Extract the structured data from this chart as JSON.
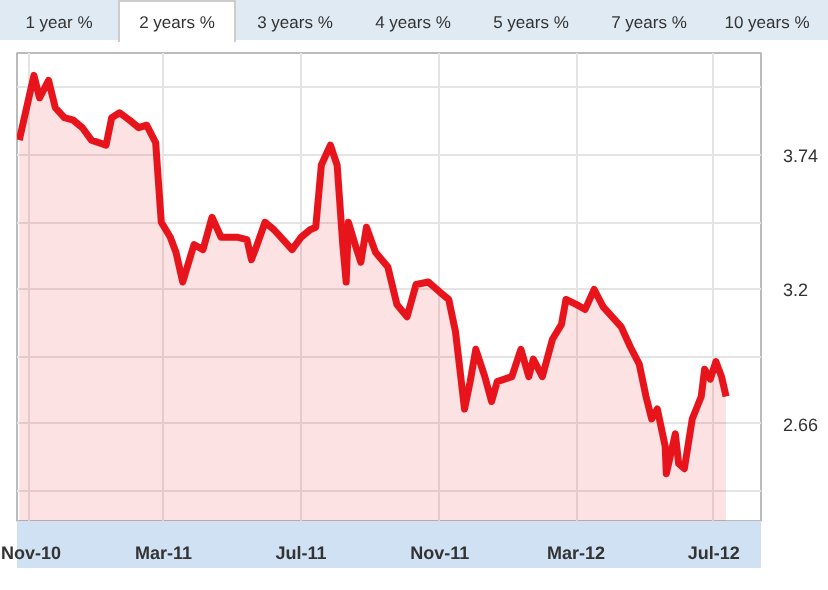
{
  "chart_data": {
    "type": "area",
    "annotations": [
      "1 year %",
      "2 years %",
      "3 years %",
      "4 years %",
      "5 years %",
      "7 years %",
      "10 years %"
    ],
    "x": [
      "2010-10-24",
      "2010-11-06",
      "2010-11-11",
      "2010-11-19",
      "2010-11-25",
      "2010-12-03",
      "2010-12-11",
      "2010-12-19",
      "2010-12-27",
      "2011-01-09",
      "2011-01-14",
      "2011-01-21",
      "2011-01-30",
      "2011-02-07",
      "2011-02-14",
      "2011-02-22",
      "2011-02-27",
      "2011-03-07",
      "2011-03-12",
      "2011-03-18",
      "2011-03-28",
      "2011-04-05",
      "2011-04-13",
      "2011-04-21",
      "2011-05-05",
      "2011-05-14",
      "2011-05-18",
      "2011-05-23",
      "2011-05-30",
      "2011-06-07",
      "2011-06-15",
      "2011-06-23",
      "2011-07-01",
      "2011-07-09",
      "2011-07-14",
      "2011-07-19",
      "2011-07-27",
      "2011-08-02",
      "2011-08-07",
      "2011-08-10",
      "2011-08-12",
      "2011-08-18",
      "2011-08-23",
      "2011-08-28",
      "2011-09-05",
      "2011-09-16",
      "2011-09-24",
      "2011-10-03",
      "2011-10-11",
      "2011-10-22",
      "2011-11-01",
      "2011-11-09",
      "2011-11-15",
      "2011-11-23",
      "2011-11-28",
      "2011-12-03",
      "2011-12-11",
      "2011-12-17",
      "2011-12-22",
      "2012-01-04",
      "2012-01-12",
      "2012-01-19",
      "2012-01-23",
      "2012-01-31",
      "2012-02-09",
      "2012-02-17",
      "2012-02-21",
      "2012-03-01",
      "2012-03-09",
      "2012-03-17",
      "2012-03-25",
      "2012-04-02",
      "2012-04-10",
      "2012-04-18",
      "2012-04-26",
      "2012-05-02",
      "2012-05-07",
      "2012-05-12",
      "2012-05-19",
      "2012-05-20",
      "2012-05-28",
      "2012-05-31",
      "2012-06-05",
      "2012-06-12",
      "2012-06-20",
      "2012-06-23",
      "2012-06-28",
      "2012-07-03",
      "2012-07-08",
      "2012-07-12"
    ],
    "series": [
      {
        "color": "#e8141b",
        "values": [
          3.8,
          4.06,
          3.97,
          4.04,
          3.93,
          3.89,
          3.88,
          3.85,
          3.8,
          3.78,
          3.89,
          3.91,
          3.88,
          3.85,
          3.86,
          3.79,
          3.47,
          3.41,
          3.35,
          3.23,
          3.38,
          3.36,
          3.49,
          3.41,
          3.41,
          3.4,
          3.32,
          3.38,
          3.47,
          3.44,
          3.4,
          3.36,
          3.41,
          3.44,
          3.45,
          3.7,
          3.78,
          3.7,
          3.38,
          3.23,
          3.47,
          3.38,
          3.31,
          3.45,
          3.35,
          3.29,
          3.14,
          3.09,
          3.22,
          3.23,
          3.19,
          3.16,
          3.03,
          2.72,
          2.83,
          2.96,
          2.85,
          2.75,
          2.83,
          2.85,
          2.96,
          2.85,
          2.92,
          2.85,
          3.0,
          3.06,
          3.16,
          3.14,
          3.12,
          3.2,
          3.13,
          3.09,
          3.05,
          2.97,
          2.9,
          2.77,
          2.68,
          2.72,
          2.57,
          2.46,
          2.62,
          2.5,
          2.48,
          2.68,
          2.77,
          2.88,
          2.84,
          2.91,
          2.85,
          2.77
        ]
      }
    ],
    "xlim": [
      "2010-10-22",
      "2012-08-12"
    ],
    "xticks": [
      {
        "value": "2010-11-01",
        "label": "Nov-10"
      },
      {
        "value": "2011-03-01",
        "label": "Mar-11"
      },
      {
        "value": "2011-07-01",
        "label": "Jul-11"
      },
      {
        "value": "2011-11-01",
        "label": "Nov-11"
      },
      {
        "value": "2012-03-01",
        "label": "Mar-12"
      },
      {
        "value": "2012-07-01",
        "label": "Jul-12"
      }
    ],
    "ylim": [
      2.27,
      4.15
    ],
    "yticks": [
      {
        "value": 2.39,
        "label": null
      },
      2.66,
      {
        "value": 2.93,
        "label": null
      },
      3.2,
      {
        "value": 3.47,
        "label": null
      },
      3.74,
      {
        "value": 4.01,
        "label": null
      }
    ],
    "grid": true,
    "line_style": "solid"
  }
}
